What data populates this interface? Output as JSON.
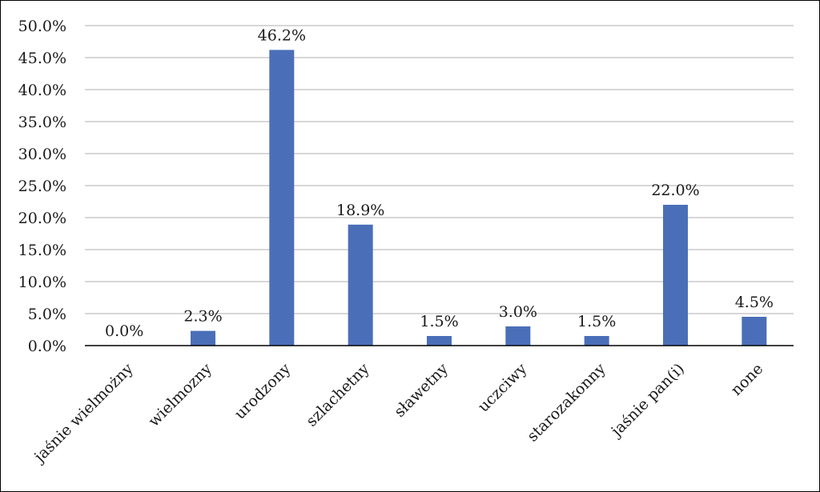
{
  "chart_data": {
    "type": "bar",
    "categories": [
      "jaśnie wielmożny",
      "wielmozny",
      "urodzony",
      "szlachetny",
      "sławetny",
      "uczciwy",
      "starozakonny",
      "jaśnie pan(i)",
      "none"
    ],
    "values": [
      0.0,
      2.3,
      46.2,
      18.9,
      1.5,
      3.0,
      1.5,
      22.0,
      4.5
    ],
    "data_labels": [
      "0.0%",
      "2.3%",
      "46.2%",
      "18.9%",
      "1.5%",
      "3.0%",
      "1.5%",
      "22.0%",
      "4.5%"
    ],
    "y_ticks": [
      "0.0%",
      "5.0%",
      "10.0%",
      "15.0%",
      "20.0%",
      "25.0%",
      "30.0%",
      "35.0%",
      "40.0%",
      "45.0%",
      "50.0%"
    ],
    "title": "",
    "xlabel": "",
    "ylabel": "",
    "ylim": [
      0,
      50
    ],
    "grid": true,
    "legend": "none",
    "colors": {
      "bar": "#4a6fb8",
      "grid": "#bfbfbf",
      "axis": "#000000"
    }
  }
}
